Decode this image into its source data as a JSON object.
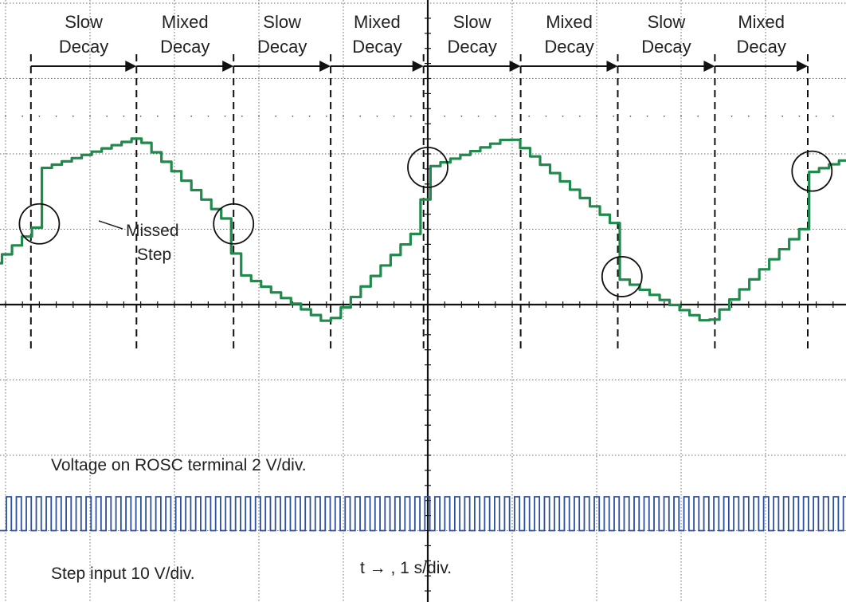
{
  "chart_data": {
    "type": "line",
    "title": "",
    "xlabel": "t →  , 1 s/div.",
    "ylabel": "",
    "grid": true,
    "x_unit": "div",
    "xlim": [
      -5.75,
      5.65
    ],
    "series": [
      {
        "name": "Voltage on ROSC terminal 2 V/div.",
        "color": "#1f8a4c",
        "style": "staircase",
        "step_period_div": 0.118,
        "x": [
          -5.75,
          -5.3,
          -4.6,
          -4.55,
          -3.4,
          -2.3,
          -2.25,
          -1.15,
          -0.05,
          0.0,
          1.0,
          2.25,
          2.3,
          3.35,
          4.5,
          4.55,
          5.65
        ],
        "y": [
          -0.15,
          0.35,
          1.05,
          1.8,
          2.22,
          1.05,
          0.45,
          -0.25,
          1.05,
          1.8,
          2.22,
          1.05,
          0.35,
          -0.25,
          1.05,
          1.75,
          2.22
        ]
      },
      {
        "name": "Step input 10 V/div.",
        "color": "#2c4fa0",
        "style": "pulse-train",
        "low": -3.0,
        "high": -2.55,
        "pulse_period_div": 0.118,
        "duty": 0.5
      }
    ],
    "phases": [
      "Slow\nDecay",
      "Mixed\nDecay",
      "Slow\nDecay",
      "Mixed\nDecay",
      "Slow\nDecay",
      "Mixed\nDecay",
      "Slow\nDecay",
      "Mixed\nDecay"
    ],
    "phase_boundaries_x": [
      -4.7,
      -3.45,
      -2.3,
      -1.15,
      -0.05,
      1.1,
      2.25,
      3.4,
      4.5
    ],
    "missed_step_x": [
      -4.6,
      -2.3,
      0.0,
      2.3,
      4.55
    ],
    "annotation": "Missed\nStep",
    "trace_labels": [
      "Voltage on ROSC terminal 2 V/div.",
      "Step input 10 V/div."
    ],
    "time_label": "t →  , 1 s/div."
  },
  "colors": {
    "grid": "#6e6e6e",
    "axis": "#111111",
    "green_trace": "#1f8a4c",
    "blue_trace": "#2c4fa0"
  }
}
